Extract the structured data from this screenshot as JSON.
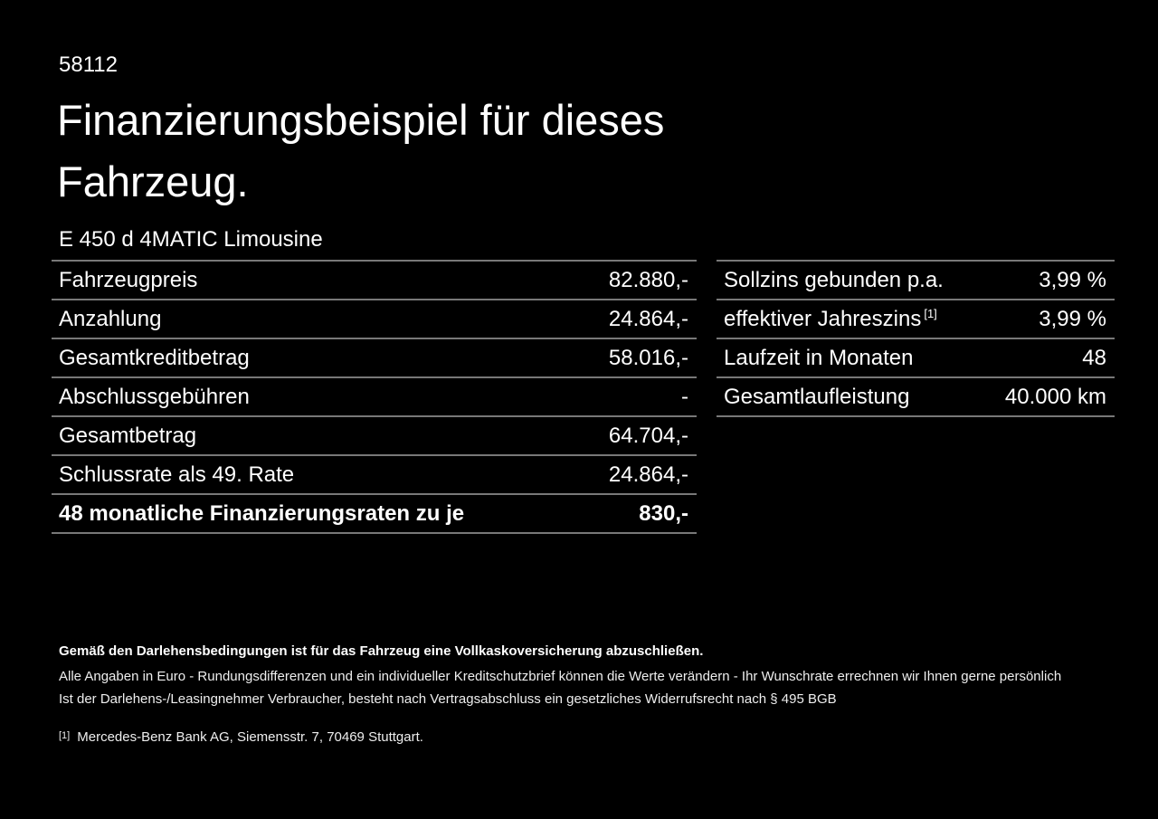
{
  "page": {
    "doc_number": "58112",
    "title_line1": "Finanzierungsbeispiel für dieses",
    "title_line2": "Fahrzeug.",
    "vehicle_model": "E 450 d 4MATIC Limousine"
  },
  "colors": {
    "background": "#000000",
    "text": "#ffffff",
    "divider": "#787878"
  },
  "finance_table": {
    "rows": [
      {
        "label": "Fahrzeugpreis",
        "value": "82.880,-"
      },
      {
        "label": "Anzahlung",
        "value": "24.864,-"
      },
      {
        "label": "Gesamtkreditbetrag",
        "value": "58.016,-"
      },
      {
        "label": "Abschlussgebühren",
        "value": "-"
      },
      {
        "label": "Gesamtbetrag",
        "value": "64.704,-"
      },
      {
        "label": "Schlussrate als 49. Rate",
        "value": "24.864,-"
      },
      {
        "label": "48 monatliche Finanzierungsraten zu je",
        "value": "830,-"
      }
    ]
  },
  "conditions_table": {
    "rows": [
      {
        "label": "Sollzins gebunden p.a.",
        "sup": "",
        "value": "3,99 %"
      },
      {
        "label": "effektiver Jahreszins",
        "sup": "[1]",
        "value": "3,99 %"
      },
      {
        "label": "Laufzeit in Monaten",
        "sup": "",
        "value": "48"
      },
      {
        "label": "Gesamtlaufleistung",
        "sup": "",
        "value": "40.000 km"
      }
    ]
  },
  "footer": {
    "insurance_note": "Gemäß den Darlehensbedingungen ist für das Fahrzeug eine Vollkaskoversicherung abzuschließen.",
    "note_line1": "Alle Angaben in Euro - Rundungsdifferenzen und ein individueller Kreditschutzbrief können die Werte verändern - Ihr Wunschrate errechnen wir Ihnen gerne persönlich",
    "note_line2": "Ist der Darlehens-/Leasingnehmer Verbraucher, besteht nach Vertragsabschluss ein gesetzliches Widerrufsrecht nach § 495 BGB",
    "footnote_marker": "[1]",
    "footnote_text": "Mercedes-Benz Bank AG, Siemensstr. 7, 70469 Stuttgart."
  }
}
